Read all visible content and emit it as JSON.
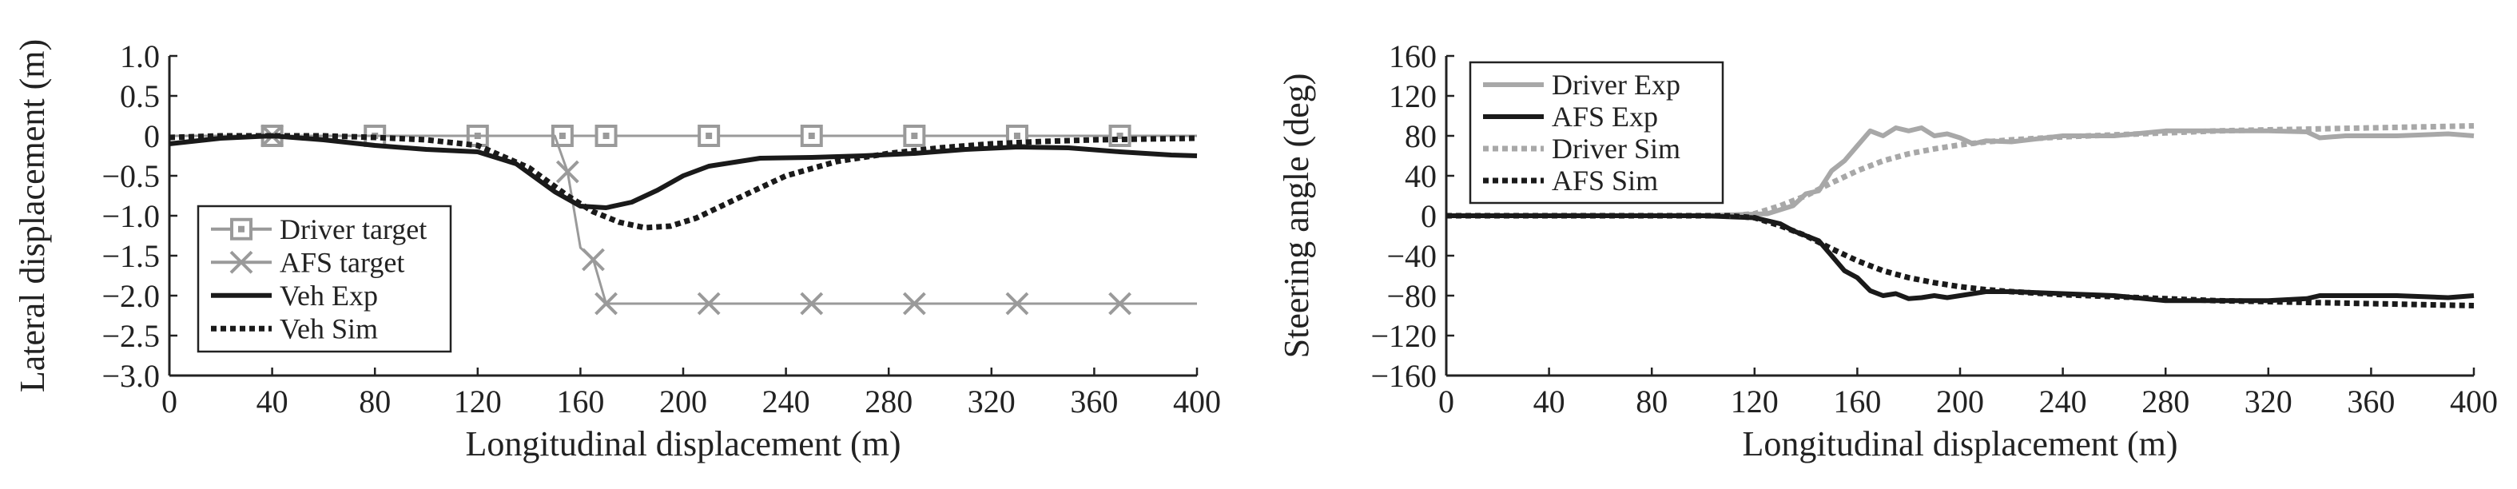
{
  "chart_data": [
    {
      "type": "line",
      "xlabel": "Longitudinal displacement (m)",
      "ylabel": "Lateral displacement (m)",
      "xlim": [
        0,
        400
      ],
      "ylim": [
        -3.0,
        1.0
      ],
      "xticks": [
        0,
        40,
        80,
        120,
        160,
        200,
        240,
        280,
        320,
        360,
        400
      ],
      "xtick_labels": [
        "0",
        "40",
        "80",
        "120",
        "160",
        "200",
        "240",
        "280",
        "320",
        "360",
        "400"
      ],
      "yticks": [
        1.0,
        0.5,
        0,
        -0.5,
        -1.0,
        -1.5,
        -2.0,
        -2.5,
        -3.0
      ],
      "ytick_labels": [
        "1.0",
        "0.5",
        "0",
        "−0.5",
        "−1.0",
        "−1.5",
        "−2.0",
        "−2.5",
        "−3.0"
      ],
      "grid": false,
      "legend_position": "bottom-left",
      "series": [
        {
          "name": "Driver target",
          "style": "solid",
          "color": "#9a9a9a",
          "marker": "square",
          "x": [
            0,
            40,
            80,
            120,
            153,
            170,
            210,
            250,
            290,
            330,
            370,
            400
          ],
          "y": [
            0,
            0,
            0,
            0,
            0,
            0,
            0,
            0,
            0,
            0,
            0,
            0
          ],
          "marker_x": [
            40,
            80,
            120,
            153,
            170,
            210,
            250,
            290,
            330,
            370
          ]
        },
        {
          "name": "AFS target",
          "style": "solid",
          "color": "#9a9a9a",
          "marker": "x",
          "x": [
            0,
            40,
            80,
            120,
            150,
            155,
            160,
            165,
            170,
            210,
            250,
            290,
            330,
            370,
            400
          ],
          "y": [
            0,
            0,
            0,
            0,
            0,
            -0.45,
            -1.4,
            -1.55,
            -2.1,
            -2.1,
            -2.1,
            -2.1,
            -2.1,
            -2.1,
            -2.1
          ],
          "marker_x": [
            40,
            155,
            165,
            170,
            210,
            250,
            290,
            330,
            370
          ]
        },
        {
          "name": "Veh Exp",
          "style": "solid",
          "color": "#1a1a1a",
          "x": [
            0,
            20,
            40,
            60,
            80,
            100,
            120,
            135,
            150,
            160,
            170,
            180,
            190,
            200,
            210,
            230,
            250,
            270,
            290,
            310,
            330,
            350,
            370,
            390,
            400
          ],
          "y": [
            -0.1,
            -0.03,
            0.0,
            -0.05,
            -0.12,
            -0.17,
            -0.2,
            -0.35,
            -0.7,
            -0.88,
            -0.9,
            -0.83,
            -0.68,
            -0.5,
            -0.38,
            -0.28,
            -0.27,
            -0.25,
            -0.22,
            -0.17,
            -0.14,
            -0.15,
            -0.2,
            -0.24,
            -0.25
          ]
        },
        {
          "name": "Veh Sim",
          "style": "dotted",
          "color": "#1a1a1a",
          "x": [
            0,
            20,
            40,
            60,
            80,
            100,
            120,
            140,
            155,
            165,
            175,
            185,
            195,
            205,
            220,
            240,
            260,
            280,
            300,
            320,
            340,
            360,
            380,
            400
          ],
          "y": [
            -0.02,
            0.0,
            0.0,
            0.0,
            -0.02,
            -0.05,
            -0.12,
            -0.4,
            -0.75,
            -0.95,
            -1.08,
            -1.15,
            -1.13,
            -1.03,
            -0.8,
            -0.5,
            -0.32,
            -0.22,
            -0.15,
            -0.1,
            -0.07,
            -0.05,
            -0.04,
            -0.03
          ]
        }
      ]
    },
    {
      "type": "line",
      "xlabel": "Longitudinal displacement (m)",
      "ylabel": "Steering angle (deg)",
      "xlim": [
        0,
        400
      ],
      "ylim": [
        -160,
        160
      ],
      "xticks": [
        0,
        40,
        80,
        120,
        160,
        200,
        240,
        280,
        320,
        360,
        400
      ],
      "xtick_labels": [
        "0",
        "40",
        "80",
        "120",
        "160",
        "200",
        "240",
        "280",
        "320",
        "360",
        "400"
      ],
      "yticks": [
        160,
        120,
        80,
        40,
        0,
        -40,
        -80,
        -120,
        -160
      ],
      "ytick_labels": [
        "160",
        "120",
        "80",
        "40",
        "0",
        "−40",
        "−80",
        "−120",
        "−160"
      ],
      "grid": false,
      "legend_position": "top-left",
      "series": [
        {
          "name": "Driver Exp",
          "style": "solid",
          "color": "#a8a8a8",
          "x": [
            0,
            100,
            125,
            135,
            140,
            145,
            150,
            155,
            160,
            165,
            170,
            175,
            180,
            185,
            190,
            195,
            200,
            205,
            210,
            220,
            240,
            260,
            280,
            300,
            320,
            335,
            340,
            350,
            370,
            390,
            400
          ],
          "y": [
            0,
            0,
            2,
            10,
            22,
            25,
            45,
            55,
            70,
            85,
            80,
            88,
            85,
            88,
            80,
            82,
            78,
            72,
            75,
            74,
            80,
            80,
            85,
            85,
            85,
            84,
            78,
            80,
            80,
            82,
            80
          ]
        },
        {
          "name": "AFS Exp",
          "style": "solid",
          "color": "#1a1a1a",
          "x": [
            0,
            100,
            120,
            130,
            135,
            140,
            145,
            150,
            155,
            160,
            165,
            170,
            175,
            180,
            185,
            190,
            195,
            200,
            205,
            210,
            220,
            240,
            260,
            280,
            300,
            320,
            335,
            340,
            350,
            370,
            390,
            400
          ],
          "y": [
            0,
            0,
            -2,
            -8,
            -15,
            -20,
            -25,
            -40,
            -55,
            -62,
            -75,
            -80,
            -78,
            -83,
            -82,
            -80,
            -82,
            -80,
            -78,
            -76,
            -76,
            -78,
            -80,
            -85,
            -85,
            -85,
            -83,
            -80,
            -80,
            -80,
            -82,
            -80
          ]
        },
        {
          "name": "Driver Sim",
          "style": "dotted",
          "color": "#a8a8a8",
          "x": [
            0,
            110,
            120,
            130,
            140,
            150,
            160,
            170,
            180,
            190,
            200,
            210,
            220,
            240,
            260,
            280,
            300,
            320,
            340,
            360,
            380,
            400
          ],
          "y": [
            0,
            0,
            2,
            10,
            20,
            33,
            45,
            55,
            62,
            67,
            71,
            74,
            76,
            79,
            81,
            83,
            85,
            86,
            87,
            88,
            89,
            90
          ]
        },
        {
          "name": "AFS Sim",
          "style": "dotted",
          "color": "#1a1a1a",
          "x": [
            0,
            110,
            120,
            130,
            140,
            150,
            160,
            170,
            180,
            190,
            200,
            210,
            220,
            240,
            260,
            280,
            300,
            320,
            340,
            360,
            380,
            400
          ],
          "y": [
            0,
            0,
            -2,
            -10,
            -20,
            -33,
            -45,
            -55,
            -62,
            -67,
            -71,
            -74,
            -76,
            -79,
            -81,
            -83,
            -85,
            -86,
            -87,
            -88,
            -89,
            -90
          ]
        }
      ]
    }
  ]
}
